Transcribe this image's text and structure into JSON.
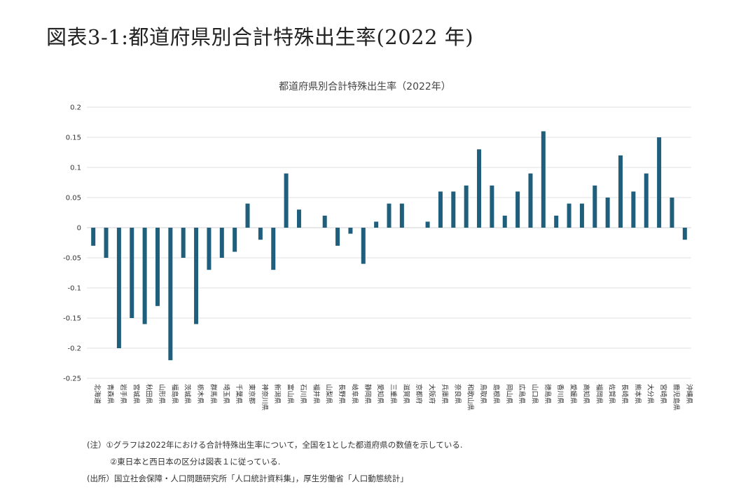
{
  "figure": {
    "title": "図表3-1:都道府県別合計特殊出生率(2022 年)"
  },
  "chart_data": {
    "type": "bar",
    "title": "都道府県別合計特殊出生率（2022年）",
    "xlabel": "",
    "ylabel": "",
    "ylim": [
      -0.25,
      0.2
    ],
    "yticks": [
      0.2,
      0.15,
      0.1,
      0.05,
      0,
      -0.05,
      -0.1,
      -0.15,
      -0.2,
      -0.25
    ],
    "ytick_labels": [
      "0.2",
      "0.15",
      "0.1",
      "0.05",
      "0",
      "-0.05",
      "-0.1",
      "-0.15",
      "-0.2",
      "-0.25"
    ],
    "grid": true,
    "bar_color": "#1f5f7c",
    "categories": [
      "北海道",
      "青森県",
      "岩手県",
      "宮城県",
      "秋田県",
      "山形県",
      "福島県",
      "茨城県",
      "栃木県",
      "群馬県",
      "埼玉県",
      "千葉県",
      "東京都",
      "神奈川県",
      "新潟県",
      "富山県",
      "石川県",
      "福井県",
      "山梨県",
      "長野県",
      "岐阜県",
      "静岡県",
      "愛知県",
      "三重県",
      "滋賀県",
      "京都府",
      "大阪府",
      "兵庫県",
      "奈良県",
      "和歌山県",
      "鳥取県",
      "島根県",
      "岡山県",
      "広島県",
      "山口県",
      "徳島県",
      "香川県",
      "愛媛県",
      "高知県",
      "福岡県",
      "佐賀県",
      "長崎県",
      "熊本県",
      "大分県",
      "宮崎県",
      "鹿児島県",
      "沖縄県"
    ],
    "values": [
      -0.03,
      -0.05,
      -0.2,
      -0.15,
      -0.16,
      -0.13,
      -0.22,
      -0.05,
      -0.16,
      -0.07,
      -0.05,
      -0.04,
      0.04,
      -0.02,
      -0.07,
      0.09,
      0.03,
      0,
      0.02,
      -0.03,
      -0.01,
      -0.06,
      0.01,
      0.04,
      0.04,
      0,
      0.01,
      0.06,
      0.06,
      0.07,
      0.13,
      0.07,
      0.02,
      0.06,
      0.09,
      0.16,
      0.02,
      0.04,
      0.04,
      0.07,
      0.05,
      0.12,
      0.06,
      0.09,
      0.15,
      0.05,
      -0.02
    ]
  },
  "notes": {
    "note1": "(注）①グラフは2022年における合計特殊出生率について，全国を1とした都道府県の数値を示している.",
    "note2": "②東日本と西日本の区分は図表１に従っている.",
    "source": "(出所）国立社会保障・人口問題研究所「人口統計資料集」，厚生労働省「人口動態統計」"
  }
}
